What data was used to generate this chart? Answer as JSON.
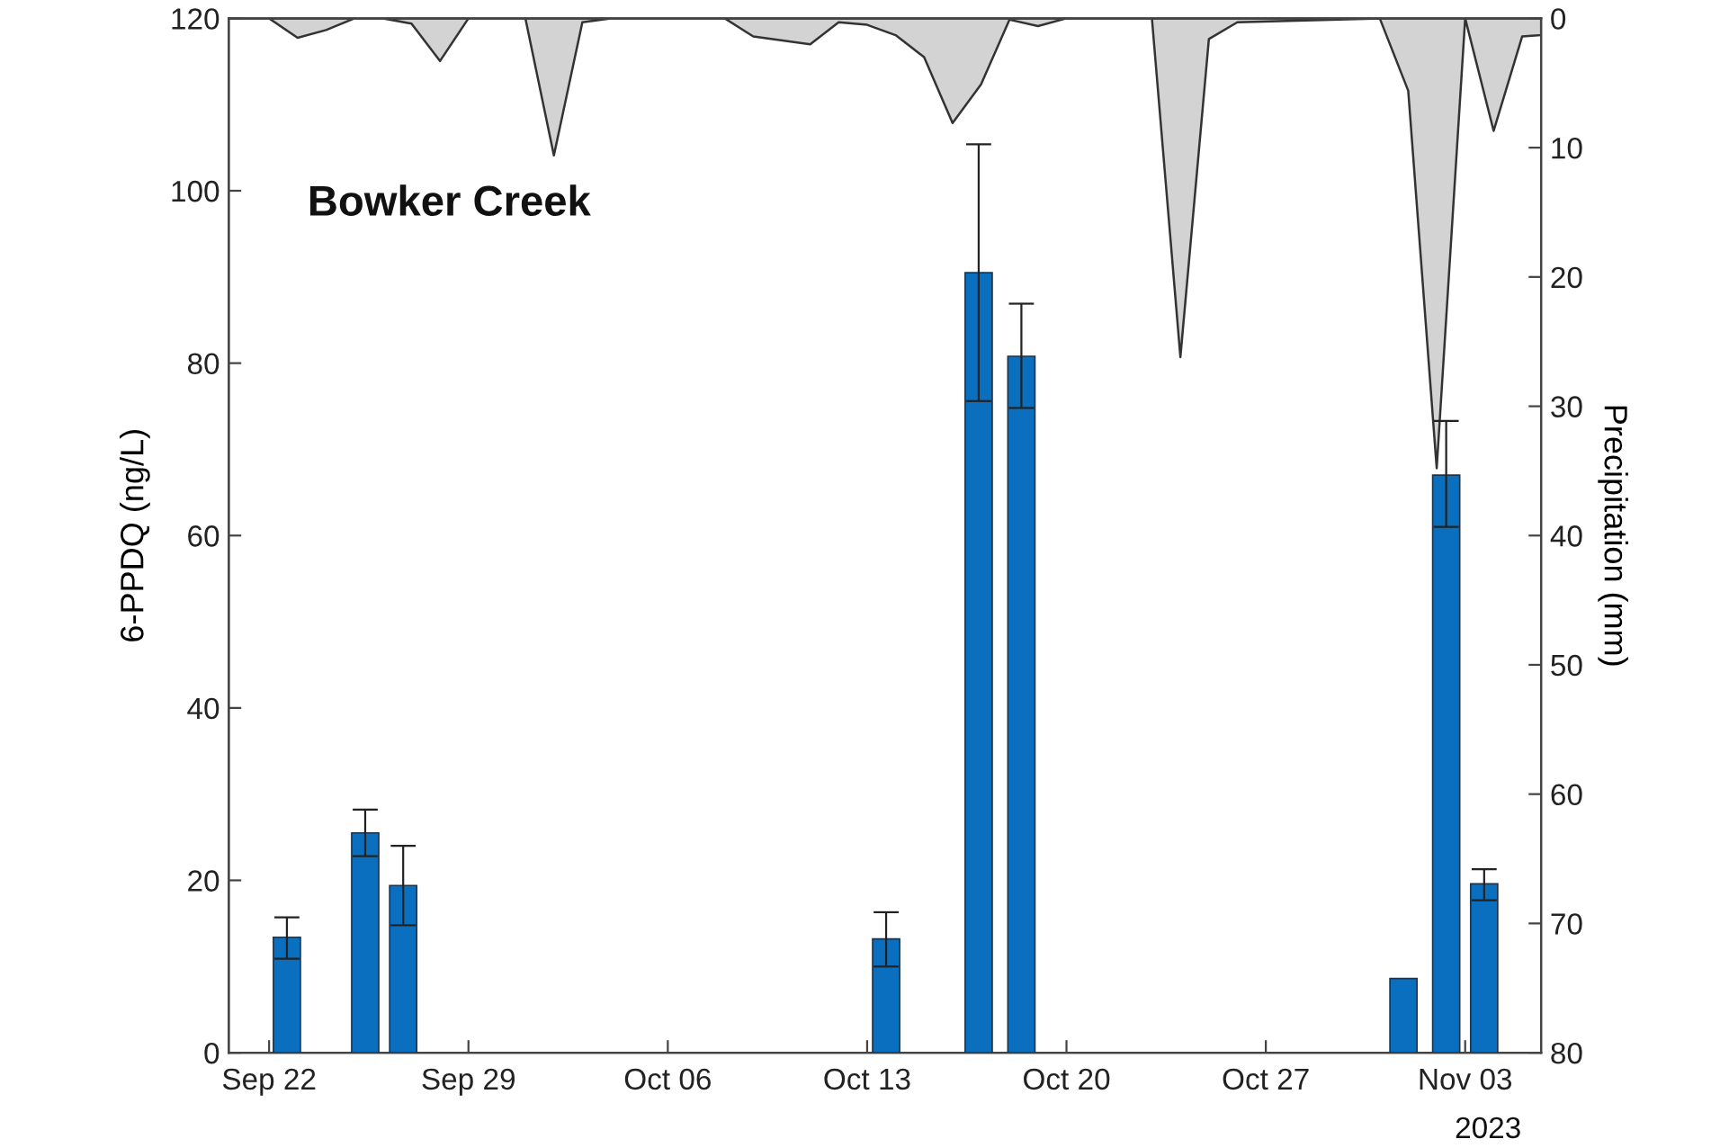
{
  "chart_data": {
    "type": "bar",
    "ylabel": "6-PPDQ (ng/L)",
    "y2label": "Precipitation (mm)",
    "annotations": [
      "Bowker Creek",
      "2023"
    ],
    "xlim": [
      "2023-09-20T14:00",
      "2023-11-05T16:00"
    ],
    "xticks": [
      {
        "value": "2023-09-22",
        "label": "Sep 22"
      },
      {
        "value": "2023-09-29",
        "label": "Sep 29"
      },
      {
        "value": "2023-10-06",
        "label": "Oct 06"
      },
      {
        "value": "2023-10-13",
        "label": "Oct 13"
      },
      {
        "value": "2023-10-20",
        "label": "Oct 20"
      },
      {
        "value": "2023-10-27",
        "label": "Oct 27"
      },
      {
        "value": "2023-11-03",
        "label": "Nov 03"
      }
    ],
    "ylim": [
      0,
      120
    ],
    "yticks": [
      0,
      20,
      40,
      60,
      80,
      100,
      120
    ],
    "y2lim": [
      80,
      0
    ],
    "y2ticks": [
      0,
      10,
      20,
      30,
      40,
      50,
      60,
      70,
      80
    ],
    "grid": false,
    "legend": false,
    "series": [
      {
        "type": "area",
        "axis": "y2",
        "color": "#d3d3d3",
        "x": [
          "2023-09-20T14:00",
          "2023-09-22",
          "2023-09-23",
          "2023-09-24",
          "2023-09-25",
          "2023-09-26",
          "2023-09-27",
          "2023-09-28",
          "2023-09-29",
          "2023-10-01",
          "2023-10-02",
          "2023-10-03",
          "2023-10-04",
          "2023-10-08",
          "2023-10-09",
          "2023-10-11",
          "2023-10-12",
          "2023-10-13",
          "2023-10-14",
          "2023-10-15",
          "2023-10-16",
          "2023-10-17",
          "2023-10-18",
          "2023-10-19",
          "2023-10-20",
          "2023-10-23",
          "2023-10-24",
          "2023-10-25",
          "2023-10-26",
          "2023-10-31",
          "2023-11-01",
          "2023-11-02",
          "2023-11-03",
          "2023-11-04",
          "2023-11-05",
          "2023-11-05T16:00"
        ],
        "values": [
          0,
          0,
          1.5,
          0.9,
          0,
          0,
          0.4,
          3.3,
          0,
          0,
          10.6,
          0.3,
          0,
          0,
          1.4,
          2.0,
          0.3,
          0.5,
          1.3,
          3.0,
          8.1,
          5.1,
          0.1,
          0.6,
          0,
          0,
          26.2,
          1.6,
          0.3,
          0,
          5.6,
          34.8,
          0,
          8.7,
          1.4,
          1.3
        ]
      },
      {
        "color": "#0b6fbf",
        "x": [
          "2023-09-22T15:00",
          "2023-09-25T09:00",
          "2023-09-26T17:00",
          "2023-10-13T16:00",
          "2023-10-16T22:00",
          "2023-10-18T10:00",
          "2023-10-31T20:00",
          "2023-11-02T08:00",
          "2023-11-03T16:00"
        ],
        "values": [
          13.4,
          25.5,
          19.4,
          13.2,
          90.5,
          80.8,
          8.6,
          67.0,
          19.6
        ],
        "errors": [
          [
            10.9,
            15.7
          ],
          [
            22.8,
            28.2
          ],
          [
            14.8,
            24.0
          ],
          [
            10.0,
            16.3
          ],
          [
            75.6,
            105.4
          ],
          [
            74.8,
            86.9
          ],
          null,
          [
            61.0,
            73.3
          ],
          [
            17.7,
            21.3
          ]
        ]
      }
    ]
  }
}
